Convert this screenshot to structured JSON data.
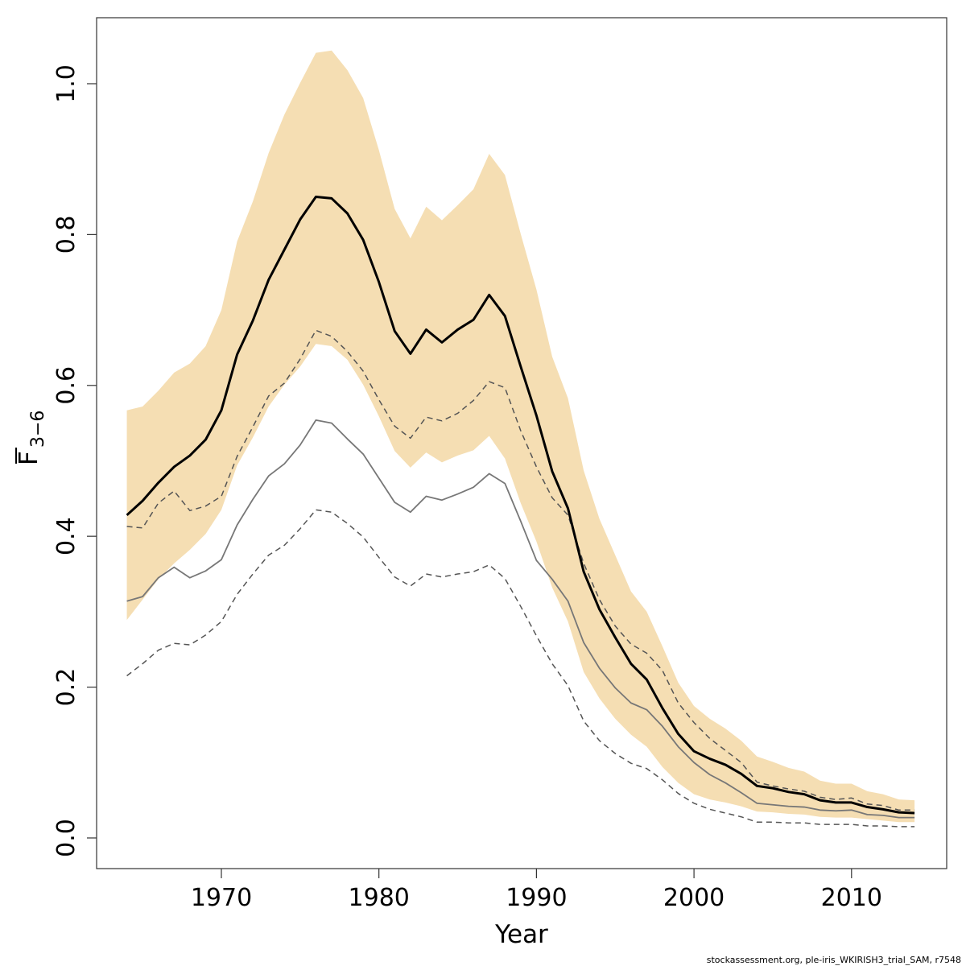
{
  "chart_data": {
    "type": "line",
    "xlabel": "Year",
    "ylabel": "F",
    "ylabel_subscript": "3−6",
    "footnote": "stockassessment.org, ple-iris_WKIRISH3_trial_SAM, r7548",
    "x": [
      1964,
      1965,
      1966,
      1967,
      1968,
      1969,
      1970,
      1971,
      1972,
      1973,
      1974,
      1975,
      1976,
      1977,
      1978,
      1979,
      1980,
      1981,
      1982,
      1983,
      1984,
      1985,
      1986,
      1987,
      1988,
      1989,
      1990,
      1991,
      1992,
      1993,
      1994,
      1995,
      1996,
      1997,
      1998,
      1999,
      2000,
      2001,
      2002,
      2003,
      2004,
      2005,
      2006,
      2007,
      2008,
      2009,
      2010,
      2011,
      2012,
      2013,
      2014
    ],
    "xlim": [
      1962.08,
      2016.04
    ],
    "xticks": [
      1970,
      1980,
      1990,
      2000,
      2010
    ],
    "ylim": [
      -0.0406,
      1.0875
    ],
    "yticks": [
      {
        "value": 0,
        "label": "0.0"
      },
      0.2,
      0.4,
      0.6,
      0.8,
      {
        "value": 1,
        "label": "1.0"
      }
    ],
    "band": {
      "color": "#f5deb3",
      "upper": [
        0.567,
        0.572,
        0.593,
        0.617,
        0.629,
        0.652,
        0.7,
        0.791,
        0.844,
        0.908,
        0.959,
        1.001,
        1.041,
        1.044,
        1.018,
        0.981,
        0.912,
        0.834,
        0.795,
        0.837,
        0.819,
        0.839,
        0.86,
        0.907,
        0.879,
        0.801,
        0.727,
        0.638,
        0.583,
        0.487,
        0.423,
        0.375,
        0.327,
        0.3,
        0.254,
        0.206,
        0.175,
        0.158,
        0.145,
        0.129,
        0.108,
        0.101,
        0.093,
        0.088,
        0.076,
        0.072,
        0.072,
        0.062,
        0.058,
        0.051,
        0.05
      ],
      "lower": [
        0.289,
        0.316,
        0.343,
        0.364,
        0.382,
        0.403,
        0.435,
        0.494,
        0.531,
        0.572,
        0.601,
        0.625,
        0.655,
        0.652,
        0.634,
        0.601,
        0.559,
        0.513,
        0.491,
        0.511,
        0.498,
        0.507,
        0.514,
        0.533,
        0.503,
        0.444,
        0.393,
        0.332,
        0.287,
        0.22,
        0.185,
        0.158,
        0.137,
        0.121,
        0.094,
        0.073,
        0.058,
        0.051,
        0.047,
        0.042,
        0.035,
        0.034,
        0.032,
        0.031,
        0.028,
        0.027,
        0.027,
        0.025,
        0.023,
        0.021,
        0.021
      ]
    },
    "series": [
      {
        "color": "#555555",
        "width": 1.5,
        "dash": true,
        "values": [
          0.215,
          0.231,
          0.249,
          0.258,
          0.256,
          0.269,
          0.287,
          0.323,
          0.35,
          0.375,
          0.388,
          0.41,
          0.435,
          0.432,
          0.417,
          0.399,
          0.372,
          0.346,
          0.334,
          0.35,
          0.346,
          0.35,
          0.353,
          0.362,
          0.344,
          0.307,
          0.268,
          0.231,
          0.202,
          0.155,
          0.129,
          0.112,
          0.099,
          0.092,
          0.077,
          0.059,
          0.046,
          0.038,
          0.033,
          0.028,
          0.021,
          0.021,
          0.02,
          0.02,
          0.018,
          0.018,
          0.018,
          0.016,
          0.016,
          0.015,
          0.015
        ]
      },
      {
        "color": "#555555",
        "width": 1.5,
        "dash": true,
        "values": [
          0.413,
          0.411,
          0.444,
          0.46,
          0.434,
          0.44,
          0.453,
          0.506,
          0.545,
          0.586,
          0.603,
          0.635,
          0.673,
          0.665,
          0.645,
          0.619,
          0.581,
          0.546,
          0.53,
          0.558,
          0.553,
          0.563,
          0.58,
          0.605,
          0.597,
          0.54,
          0.492,
          0.451,
          0.428,
          0.364,
          0.316,
          0.281,
          0.257,
          0.245,
          0.222,
          0.179,
          0.153,
          0.132,
          0.116,
          0.1,
          0.074,
          0.069,
          0.065,
          0.062,
          0.054,
          0.051,
          0.053,
          0.045,
          0.043,
          0.037,
          0.037
        ]
      },
      {
        "color": "#777777",
        "width": 1.8,
        "dash": false,
        "values": [
          0.314,
          0.32,
          0.345,
          0.359,
          0.345,
          0.354,
          0.369,
          0.415,
          0.449,
          0.48,
          0.496,
          0.521,
          0.554,
          0.55,
          0.529,
          0.509,
          0.477,
          0.445,
          0.432,
          0.453,
          0.448,
          0.456,
          0.465,
          0.483,
          0.47,
          0.42,
          0.368,
          0.343,
          0.314,
          0.259,
          0.225,
          0.199,
          0.179,
          0.17,
          0.148,
          0.121,
          0.1,
          0.084,
          0.073,
          0.06,
          0.046,
          0.044,
          0.042,
          0.041,
          0.037,
          0.036,
          0.037,
          0.031,
          0.03,
          0.027,
          0.027
        ]
      },
      {
        "color": "#000000",
        "width": 3,
        "dash": false,
        "values": [
          0.428,
          0.447,
          0.471,
          0.492,
          0.507,
          0.528,
          0.567,
          0.641,
          0.686,
          0.74,
          0.78,
          0.82,
          0.85,
          0.848,
          0.828,
          0.793,
          0.737,
          0.672,
          0.642,
          0.674,
          0.657,
          0.674,
          0.687,
          0.72,
          0.692,
          0.625,
          0.56,
          0.486,
          0.437,
          0.353,
          0.303,
          0.266,
          0.231,
          0.21,
          0.172,
          0.138,
          0.115,
          0.105,
          0.097,
          0.085,
          0.069,
          0.066,
          0.061,
          0.058,
          0.05,
          0.047,
          0.047,
          0.041,
          0.038,
          0.034,
          0.033
        ]
      }
    ]
  }
}
